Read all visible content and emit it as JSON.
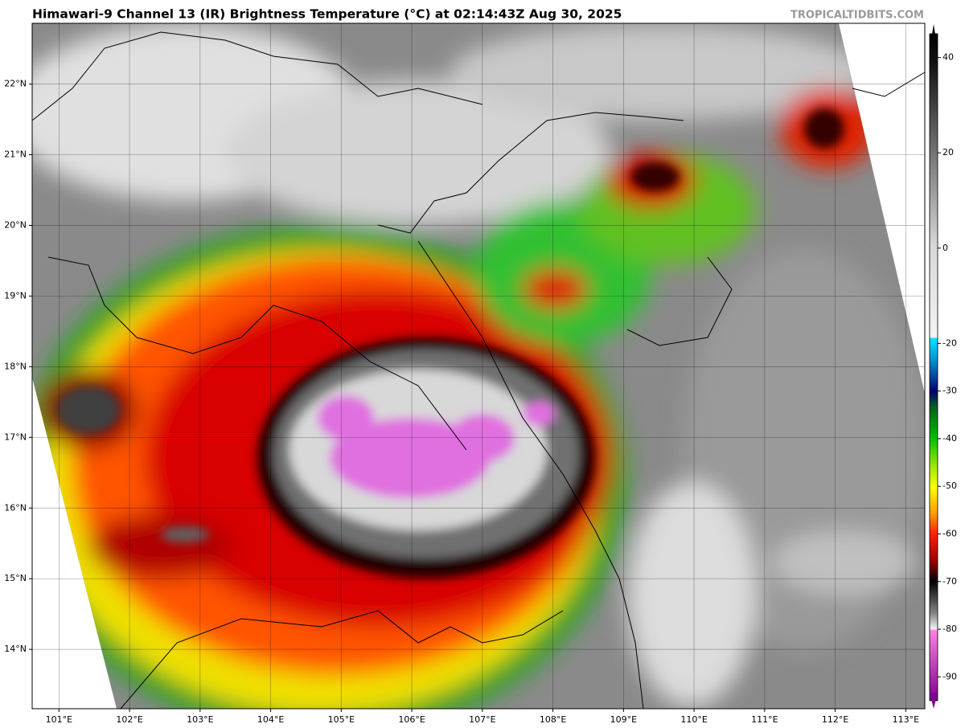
{
  "header": {
    "title": "Himawari-9 Channel 13 (IR) Brightness Temperature (°C) at 02:14:43Z Aug 30, 2025",
    "credit": "TROPICALTIDBITS.COM"
  },
  "map": {
    "lat": {
      "lim": [
        13.16,
        22.86
      ],
      "ticks": [
        {
          "value": 14,
          "label": "14°N"
        },
        {
          "value": 15,
          "label": "15°N"
        },
        {
          "value": 16,
          "label": "16°N"
        },
        {
          "value": 17,
          "label": "17°N"
        },
        {
          "value": 18,
          "label": "18°N"
        },
        {
          "value": 19,
          "label": "19°N"
        },
        {
          "value": 20,
          "label": "20°N"
        },
        {
          "value": 21,
          "label": "21°N"
        },
        {
          "value": 22,
          "label": "22°N"
        }
      ]
    },
    "lon": {
      "lim": [
        100.62,
        113.27
      ],
      "ticks": [
        {
          "value": 101,
          "label": "101°E"
        },
        {
          "value": 102,
          "label": "102°E"
        },
        {
          "value": 103,
          "label": "103°E"
        },
        {
          "value": 104,
          "label": "104°E"
        },
        {
          "value": 105,
          "label": "105°E"
        },
        {
          "value": 106,
          "label": "106°E"
        },
        {
          "value": 107,
          "label": "107°E"
        },
        {
          "value": 108,
          "label": "108°E"
        },
        {
          "value": 109,
          "label": "109°E"
        },
        {
          "value": 110,
          "label": "110°E"
        },
        {
          "value": 111,
          "label": "111°E"
        },
        {
          "value": 112,
          "label": "112°E"
        },
        {
          "value": 113,
          "label": "113°E"
        }
      ]
    }
  },
  "colorbar": {
    "lim": [
      -95,
      45
    ],
    "ticks": [
      40,
      20,
      0,
      -20,
      -30,
      -40,
      -50,
      -60,
      -70,
      -80,
      -90
    ]
  }
}
